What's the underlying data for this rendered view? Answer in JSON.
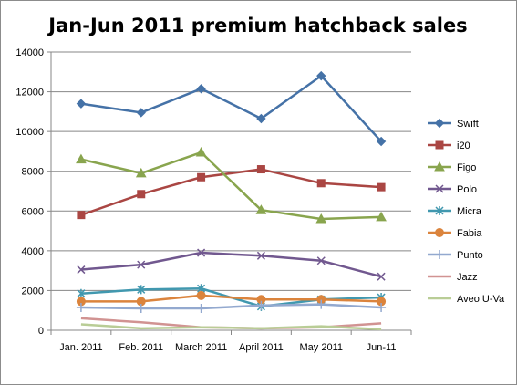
{
  "chart_data": {
    "type": "line",
    "title": "Jan-Jun 2011 premium hatchback sales",
    "xlabel": "",
    "ylabel": "",
    "categories": [
      "Jan. 2011",
      "Feb. 2011",
      "March 2011",
      "April 2011",
      "May 2011",
      "Jun-11"
    ],
    "ylim": [
      0,
      14000
    ],
    "yticks": [
      0,
      2000,
      4000,
      6000,
      8000,
      10000,
      12000,
      14000
    ],
    "grid": true,
    "legend": "right",
    "series": [
      {
        "name": "Swift",
        "color": "#4572a7",
        "marker": "diamond",
        "values": [
          11400,
          10950,
          12150,
          10650,
          12800,
          9500
        ]
      },
      {
        "name": "i20",
        "color": "#aa4643",
        "marker": "square",
        "values": [
          5800,
          6850,
          7700,
          8100,
          7400,
          7200
        ]
      },
      {
        "name": "Figo",
        "color": "#89a54e",
        "marker": "triangle",
        "values": [
          8600,
          7900,
          8950,
          6050,
          5600,
          5700
        ]
      },
      {
        "name": "Polo",
        "color": "#71588f",
        "marker": "x",
        "values": [
          3050,
          3300,
          3900,
          3750,
          3500,
          2700
        ]
      },
      {
        "name": "Micra",
        "color": "#4198af",
        "marker": "star",
        "values": [
          1850,
          2050,
          2100,
          1200,
          1550,
          1650
        ]
      },
      {
        "name": "Fabia",
        "color": "#db843d",
        "marker": "circle",
        "values": [
          1450,
          1450,
          1750,
          1550,
          1550,
          1450
        ]
      },
      {
        "name": "Punto",
        "color": "#93a9cf",
        "marker": "plus",
        "values": [
          1150,
          1100,
          1100,
          1250,
          1300,
          1150
        ]
      },
      {
        "name": "Jazz",
        "color": "#d19392",
        "marker": "none",
        "values": [
          600,
          400,
          150,
          100,
          150,
          350
        ]
      },
      {
        "name": "Aveo U-Va",
        "color": "#b9cd96",
        "marker": "none",
        "values": [
          300,
          100,
          150,
          100,
          200,
          50
        ]
      }
    ]
  }
}
